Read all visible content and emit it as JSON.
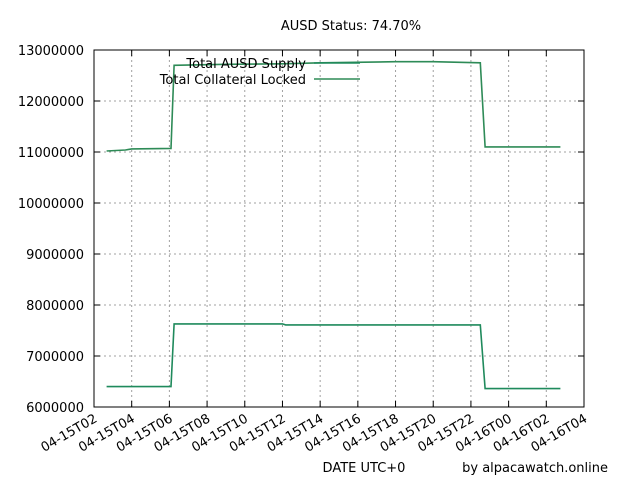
{
  "chart_data": {
    "type": "line",
    "title": "AUSD Status: 74.70%",
    "xlabel": "DATE UTC+0",
    "ylabel": "",
    "credit": "by alpacawatch.online",
    "grid": true,
    "legend_position": "top-left",
    "ylim": [
      6000000,
      13000000
    ],
    "yticks": [
      6000000,
      7000000,
      8000000,
      9000000,
      10000000,
      11000000,
      12000000,
      13000000
    ],
    "x_range": [
      "04-15 02:00",
      "04-16 04:00"
    ],
    "xticks": [
      "04-15T02",
      "04-15T04",
      "04-15T06",
      "04-15T08",
      "04-15T10",
      "04-15T12",
      "04-15T14",
      "04-15T16",
      "04-15T18",
      "04-15T20",
      "04-15T22",
      "04-16T00",
      "04-16T02",
      "04-16T04"
    ],
    "series": [
      {
        "name": "Total AUSD Supply",
        "color": "#1f8a5c",
        "points": [
          [
            "04-15 02:40",
            6400000
          ],
          [
            "04-15 06:05",
            6400000
          ],
          [
            "04-15 06:15",
            7630000
          ],
          [
            "04-15 12:00",
            7630000
          ],
          [
            "04-15 12:10",
            7610000
          ],
          [
            "04-15 22:30",
            7610000
          ],
          [
            "04-15 22:45",
            6360000
          ],
          [
            "04-16 02:45",
            6360000
          ]
        ]
      },
      {
        "name": "Total Collateral Locked",
        "color": "#2e8b57",
        "points": [
          [
            "04-15 02:40",
            11020000
          ],
          [
            "04-15 03:40",
            11040000
          ],
          [
            "04-15 04:00",
            11060000
          ],
          [
            "04-15 06:05",
            11070000
          ],
          [
            "04-15 06:15",
            12700000
          ],
          [
            "04-15 09:00",
            12720000
          ],
          [
            "04-15 12:00",
            12730000
          ],
          [
            "04-15 14:00",
            12750000
          ],
          [
            "04-15 18:00",
            12770000
          ],
          [
            "04-15 20:00",
            12770000
          ],
          [
            "04-15 22:30",
            12750000
          ],
          [
            "04-15 22:45",
            11100000
          ],
          [
            "04-16 02:45",
            11100000
          ]
        ]
      }
    ]
  }
}
